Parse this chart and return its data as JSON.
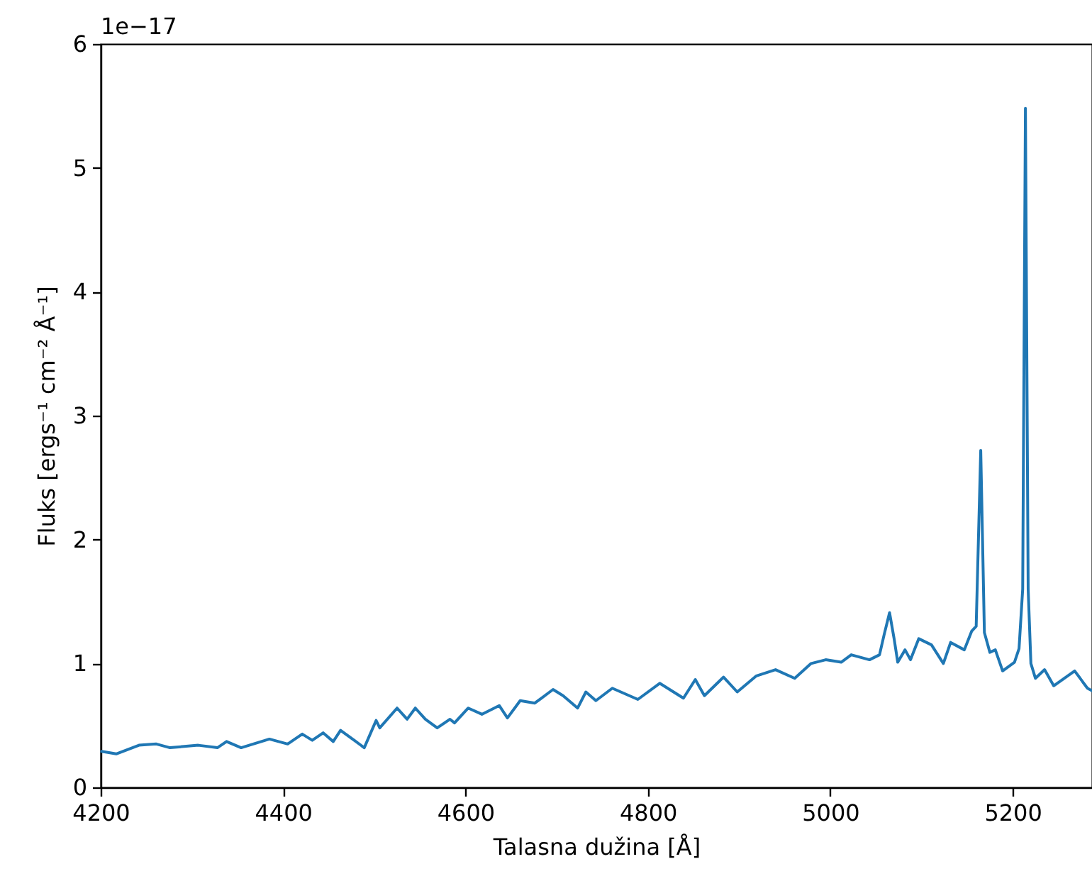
{
  "chart_data": {
    "type": "line",
    "xlabel": "Talasna dužina [Å]",
    "ylabel": "Fluks [ergs⁻¹ cm⁻² Å⁻¹]",
    "annotations": [
      "1e−17"
    ],
    "xlim": [
      4200,
      5287
    ],
    "ylim": [
      0,
      6
    ],
    "xticks": [
      4200,
      4400,
      4600,
      4800,
      5000,
      5200
    ],
    "yticks": [
      0,
      1,
      2,
      3,
      4,
      5,
      6
    ],
    "grid": false,
    "series": [
      {
        "color": "#1f77b4",
        "x": [
          4201,
          4217,
          4242,
          4261,
          4276,
          4307,
          4328,
          4338,
          4354,
          4385,
          4405,
          4421,
          4432,
          4444,
          4455,
          4463,
          4478,
          4489,
          4502,
          4506,
          4525,
          4536,
          4545,
          4556,
          4569,
          4583,
          4588,
          4603,
          4618,
          4637,
          4646,
          4660,
          4676,
          4696,
          4707,
          4723,
          4732,
          4743,
          4761,
          4789,
          4813,
          4839,
          4852,
          4862,
          4883,
          4898,
          4919,
          4940,
          4961,
          4979,
          4995,
          5012,
          5023,
          5043,
          5054,
          5059,
          5065,
          5070,
          5074,
          5082,
          5088,
          5097,
          5111,
          5124,
          5132,
          5147,
          5155,
          5160,
          5165,
          5169,
          5175,
          5181,
          5189,
          5202,
          5207,
          5211,
          5214,
          5217,
          5220,
          5225,
          5235,
          5245,
          5268,
          5282,
          5287
        ],
        "values": [
          0.29,
          0.27,
          0.34,
          0.35,
          0.32,
          0.34,
          0.32,
          0.37,
          0.32,
          0.39,
          0.35,
          0.43,
          0.38,
          0.44,
          0.37,
          0.46,
          0.38,
          0.32,
          0.54,
          0.48,
          0.64,
          0.55,
          0.64,
          0.55,
          0.48,
          0.55,
          0.52,
          0.64,
          0.59,
          0.66,
          0.56,
          0.7,
          0.68,
          0.79,
          0.74,
          0.64,
          0.77,
          0.7,
          0.8,
          0.71,
          0.84,
          0.72,
          0.87,
          0.74,
          0.89,
          0.77,
          0.9,
          0.95,
          0.88,
          1.0,
          1.03,
          1.01,
          1.07,
          1.03,
          1.07,
          1.23,
          1.41,
          1.2,
          1.01,
          1.11,
          1.03,
          1.2,
          1.15,
          1.0,
          1.17,
          1.11,
          1.26,
          1.3,
          2.72,
          1.25,
          1.09,
          1.11,
          0.94,
          1.01,
          1.12,
          1.6,
          5.48,
          1.6,
          1.0,
          0.88,
          0.95,
          0.82,
          0.94,
          0.8,
          0.78
        ]
      }
    ]
  }
}
